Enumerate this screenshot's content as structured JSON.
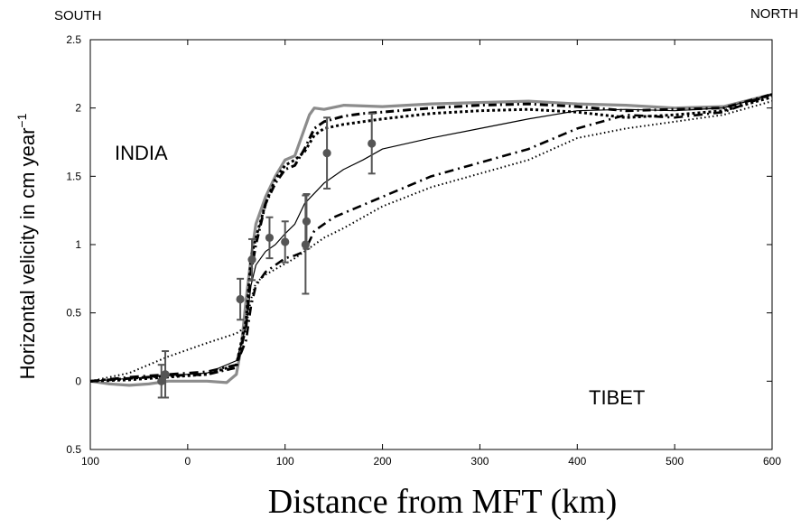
{
  "chart_data": {
    "type": "line",
    "xlabel": "Distance from MFT (km)",
    "ylabel": "Horizontal velicity in cm year",
    "ylabel_sup": "−1",
    "xlim": [
      -100,
      600
    ],
    "ylim": [
      -0.5,
      2.5
    ],
    "x_ticks": [
      -100,
      0,
      100,
      200,
      300,
      400,
      500,
      600
    ],
    "x_tick_labels": [
      "100",
      "0",
      "100",
      "200",
      "300",
      "400",
      "500",
      "600"
    ],
    "y_ticks": [
      -0.5,
      0,
      0.5,
      1,
      1.5,
      2,
      2.5
    ],
    "y_tick_labels": [
      "0.5",
      "0",
      "0.5",
      "1",
      "1.5",
      "2",
      "2.5"
    ],
    "grid": false,
    "annotations": {
      "top_left": "SOUTH",
      "top_right": "NORTH",
      "region_upper": "INDIA",
      "region_lower": "TIBET"
    },
    "series": [
      {
        "style": "solid-gray-thick",
        "color": "#8c8c8c",
        "x": [
          -100,
          -80,
          -60,
          -40,
          -20,
          0,
          20,
          40,
          50,
          55,
          60,
          65,
          70,
          80,
          90,
          100,
          110,
          120,
          125,
          130,
          140,
          160,
          200,
          250,
          300,
          350,
          400,
          450,
          500,
          550,
          600
        ],
        "y": [
          0.0,
          -0.02,
          -0.03,
          -0.02,
          0.0,
          0.0,
          0.0,
          -0.01,
          0.05,
          0.25,
          0.6,
          0.9,
          1.15,
          1.35,
          1.5,
          1.62,
          1.65,
          1.85,
          1.95,
          2.0,
          1.99,
          2.02,
          2.01,
          2.03,
          2.04,
          2.05,
          2.03,
          2.02,
          2.0,
          2.01,
          2.1
        ]
      },
      {
        "style": "dash-dot-heavy",
        "color": "#000000",
        "x": [
          -100,
          -60,
          -20,
          20,
          50,
          60,
          65,
          70,
          80,
          90,
          100,
          110,
          120,
          130,
          140,
          150,
          160,
          180,
          200,
          250,
          300,
          350,
          400,
          450,
          500,
          550,
          600
        ],
        "y": [
          0.0,
          0.02,
          0.04,
          0.05,
          0.1,
          0.4,
          0.8,
          1.0,
          1.3,
          1.45,
          1.55,
          1.58,
          1.7,
          1.85,
          1.9,
          1.92,
          1.94,
          1.96,
          1.97,
          2.0,
          2.02,
          2.03,
          2.01,
          1.98,
          1.99,
          2.0,
          2.1
        ]
      },
      {
        "style": "dotted-heavy",
        "color": "#000000",
        "x": [
          -100,
          -60,
          -20,
          20,
          50,
          60,
          65,
          70,
          80,
          90,
          100,
          110,
          120,
          130,
          140,
          160,
          180,
          200,
          250,
          300,
          350,
          400,
          450,
          500,
          550,
          600
        ],
        "y": [
          0.0,
          0.01,
          0.03,
          0.05,
          0.12,
          0.45,
          0.9,
          1.05,
          1.3,
          1.48,
          1.58,
          1.62,
          1.68,
          1.8,
          1.85,
          1.88,
          1.9,
          1.92,
          1.96,
          1.98,
          1.99,
          1.97,
          1.93,
          1.95,
          1.98,
          2.08
        ]
      },
      {
        "style": "solid-thin",
        "color": "#000000",
        "x": [
          -100,
          -60,
          -20,
          20,
          50,
          60,
          65,
          70,
          80,
          90,
          100,
          110,
          120,
          140,
          160,
          180,
          200,
          250,
          300,
          350,
          400,
          450,
          500,
          550,
          600
        ],
        "y": [
          0.0,
          0.02,
          0.04,
          0.06,
          0.15,
          0.4,
          0.7,
          0.85,
          0.95,
          1.0,
          1.08,
          1.15,
          1.3,
          1.45,
          1.55,
          1.62,
          1.7,
          1.78,
          1.85,
          1.92,
          1.98,
          1.99,
          1.98,
          2.0,
          2.1
        ]
      },
      {
        "style": "dash-dot-sparse",
        "color": "#000000",
        "x": [
          -100,
          -60,
          -20,
          20,
          50,
          60,
          65,
          70,
          80,
          90,
          100,
          110,
          120,
          130,
          150,
          200,
          250,
          300,
          350,
          400,
          450,
          500,
          550,
          600
        ],
        "y": [
          0.0,
          0.03,
          0.05,
          0.07,
          0.12,
          0.3,
          0.55,
          0.7,
          0.8,
          0.85,
          0.9,
          0.92,
          0.95,
          1.1,
          1.2,
          1.35,
          1.5,
          1.6,
          1.7,
          1.85,
          1.95,
          1.93,
          1.97,
          2.1
        ]
      },
      {
        "style": "dotted-fine",
        "color": "#000000",
        "x": [
          -100,
          -60,
          -20,
          20,
          50,
          60,
          65,
          70,
          80,
          90,
          100,
          110,
          120,
          140,
          160,
          200,
          250,
          300,
          350,
          400,
          450,
          500,
          550,
          600
        ],
        "y": [
          0.0,
          0.06,
          0.18,
          0.28,
          0.35,
          0.4,
          0.6,
          0.72,
          0.78,
          0.82,
          0.86,
          0.9,
          0.95,
          1.05,
          1.12,
          1.28,
          1.42,
          1.52,
          1.62,
          1.78,
          1.85,
          1.9,
          1.95,
          2.05
        ]
      }
    ],
    "measurements": {
      "color": "#555555",
      "x": [
        -27,
        -23,
        54,
        66,
        84,
        100,
        121,
        122,
        143,
        189
      ],
      "y": [
        0.0,
        0.05,
        0.6,
        0.89,
        1.05,
        1.02,
        1.0,
        1.17,
        1.67,
        1.74
      ],
      "error": [
        0.12,
        0.17,
        0.15,
        0.15,
        0.15,
        0.15,
        0.36,
        0.2,
        0.26,
        0.22
      ]
    }
  }
}
